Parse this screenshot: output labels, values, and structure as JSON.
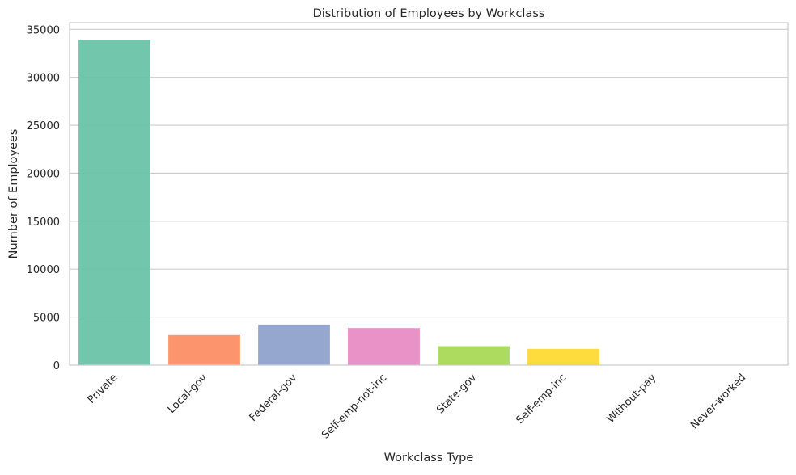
{
  "chart_data": {
    "type": "bar",
    "title": "Distribution of Employees by Workclass",
    "xlabel": "Workclass Type",
    "ylabel": "Number of Employees",
    "categories": [
      "Private",
      "Local-gov",
      "Federal-gov",
      "Self-emp-not-inc",
      "State-gov",
      "Self-emp-inc",
      "Without-pay",
      "Never-worked"
    ],
    "values": [
      33900,
      3130,
      4220,
      3860,
      1980,
      1700,
      21,
      10
    ],
    "colors": [
      "#66c2a5",
      "#fc8d62",
      "#8da0cb",
      "#e78ac3",
      "#a6d854",
      "#ffd92f",
      "#e5c494",
      "#b3b3b3"
    ],
    "ylim": [
      0,
      35700
    ],
    "yticks": [
      0,
      5000,
      10000,
      15000,
      20000,
      25000,
      30000,
      35000
    ],
    "grid": true,
    "x_tick_rotation_deg": -45
  }
}
